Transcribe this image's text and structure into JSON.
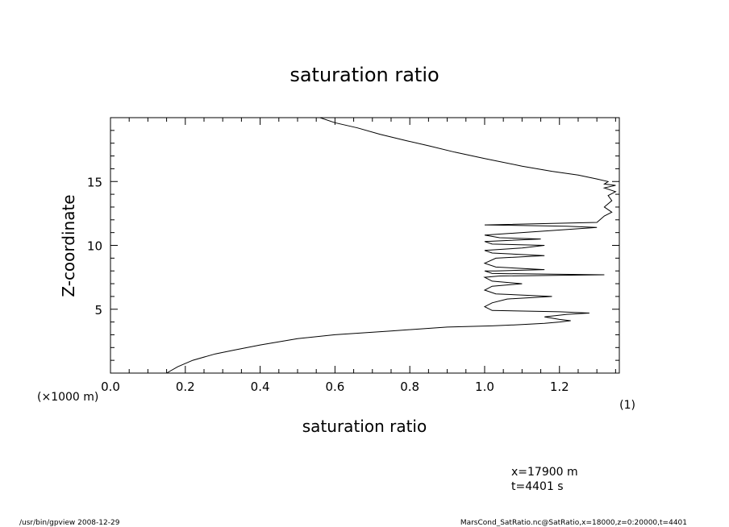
{
  "chart_data": {
    "type": "line",
    "title": "saturation ratio",
    "xlabel": "saturation ratio",
    "ylabel": "Z-coordinate",
    "y_unit_note": "(×1000 m)",
    "x_unit_note": "(1)",
    "xlim": [
      0.0,
      1.36
    ],
    "ylim": [
      0,
      20
    ],
    "x_ticks": [
      0.0,
      0.2,
      0.4,
      0.6,
      0.8,
      1.0,
      1.2
    ],
    "x_tick_labels": [
      "0.0",
      "0.2",
      "0.4",
      "0.6",
      "0.8",
      "1.0",
      "1.2"
    ],
    "y_ticks": [
      5,
      10,
      15
    ],
    "y_tick_labels": [
      "5",
      "10",
      "15"
    ],
    "series": [
      {
        "x": [
          0.15,
          0.18,
          0.22,
          0.28,
          0.33,
          0.4,
          0.5,
          0.6,
          0.75,
          0.9,
          1.02,
          1.1,
          1.16,
          1.2,
          1.23,
          1.2,
          1.16,
          1.22,
          1.28,
          1.2,
          1.02,
          1.0,
          1.02,
          1.06,
          1.18,
          1.03,
          1.0,
          1.02,
          1.1,
          1.02,
          1.0,
          1.04,
          1.32,
          1.02,
          1.0,
          1.03,
          1.16,
          1.03,
          1.0,
          1.03,
          1.16,
          1.02,
          1.0,
          1.1,
          1.16,
          1.02,
          1.0,
          1.15,
          1.04,
          1.0,
          1.3,
          1.22,
          1.0,
          1.3,
          1.32,
          1.34,
          1.32,
          1.34,
          1.33,
          1.35,
          1.32,
          1.35,
          1.32,
          1.33,
          1.3,
          1.25,
          1.18,
          1.1,
          1.0,
          0.92,
          0.85,
          0.79,
          0.72,
          0.66,
          0.6,
          0.56
        ],
        "y": [
          0.0,
          0.5,
          1.0,
          1.5,
          1.8,
          2.2,
          2.7,
          3.0,
          3.3,
          3.6,
          3.7,
          3.8,
          3.9,
          4.0,
          4.1,
          4.2,
          4.4,
          4.6,
          4.7,
          4.8,
          4.9,
          5.2,
          5.5,
          5.8,
          6.0,
          6.2,
          6.5,
          6.8,
          7.0,
          7.2,
          7.5,
          7.6,
          7.7,
          7.8,
          8.0,
          8.0,
          8.1,
          8.3,
          8.6,
          9.0,
          9.2,
          9.4,
          9.6,
          9.8,
          10.0,
          10.1,
          10.3,
          10.5,
          10.6,
          10.8,
          11.4,
          11.5,
          11.6,
          11.8,
          12.3,
          12.6,
          13.0,
          13.5,
          13.9,
          14.2,
          14.5,
          14.7,
          14.8,
          15.0,
          15.2,
          15.5,
          15.8,
          16.2,
          16.8,
          17.3,
          17.8,
          18.2,
          18.7,
          19.2,
          19.6,
          20.0
        ]
      }
    ]
  },
  "annotations": {
    "coord_x": "x=17900  m",
    "coord_t": "t=4401  s",
    "footer_left": "/usr/bin/gpview   2008-12-29",
    "footer_right": "MarsCond_SatRatio.nc@SatRatio,x=18000,z=0:20000,t=4401"
  }
}
